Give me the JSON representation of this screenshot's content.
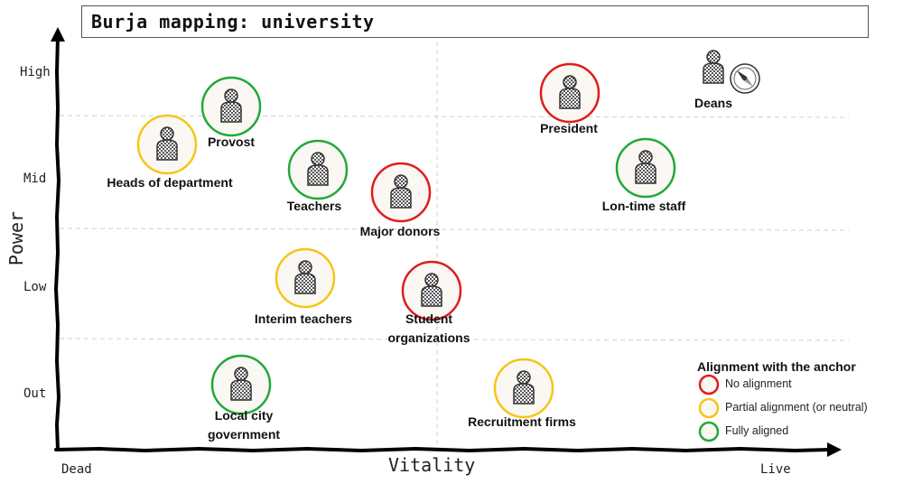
{
  "title": "Burja mapping: university",
  "axes": {
    "x_label": "Vitality",
    "y_label": "Power",
    "x_ticks": [
      "Dead",
      "Live"
    ],
    "y_ticks": [
      "High",
      "Mid",
      "Low",
      "Out"
    ]
  },
  "alignment_colors": {
    "none": "#e11c1c",
    "partial": "#f5c518",
    "full": "#22a83a"
  },
  "nodes": [
    {
      "id": "provost",
      "label": "Provost",
      "alignment": "full",
      "icon": "person-icon"
    },
    {
      "id": "heads",
      "label": "Heads of department",
      "alignment": "partial",
      "icon": "person-icon"
    },
    {
      "id": "teachers",
      "label": "Teachers",
      "alignment": "full",
      "icon": "person-icon"
    },
    {
      "id": "donors",
      "label": "Major donors",
      "alignment": "none",
      "icon": "person-icon"
    },
    {
      "id": "president",
      "label": "President",
      "alignment": "none",
      "icon": "person-icon"
    },
    {
      "id": "deans",
      "label": "Deans",
      "alignment": "anchor",
      "icon": "person-icon"
    },
    {
      "id": "longtime",
      "label": "Lon-time staff",
      "alignment": "full",
      "icon": "person-icon"
    },
    {
      "id": "interim",
      "label": "Interim teachers",
      "alignment": "partial",
      "icon": "person-icon"
    },
    {
      "id": "students",
      "label": "Student organizations",
      "alignment": "none",
      "icon": "person-icon"
    },
    {
      "id": "localgov",
      "label": "Local city government",
      "alignment": "full",
      "icon": "person-icon"
    },
    {
      "id": "recruit",
      "label": "Recruitment firms",
      "alignment": "partial",
      "icon": "person-icon"
    }
  ],
  "anchor_icon": "compass-icon",
  "legend": {
    "title": "Alignment with the anchor",
    "items": [
      {
        "label": "No alignment",
        "alignment": "none"
      },
      {
        "label": "Partial alignment (or neutral)",
        "alignment": "partial"
      },
      {
        "label": "Fully aligned",
        "alignment": "full"
      }
    ]
  }
}
